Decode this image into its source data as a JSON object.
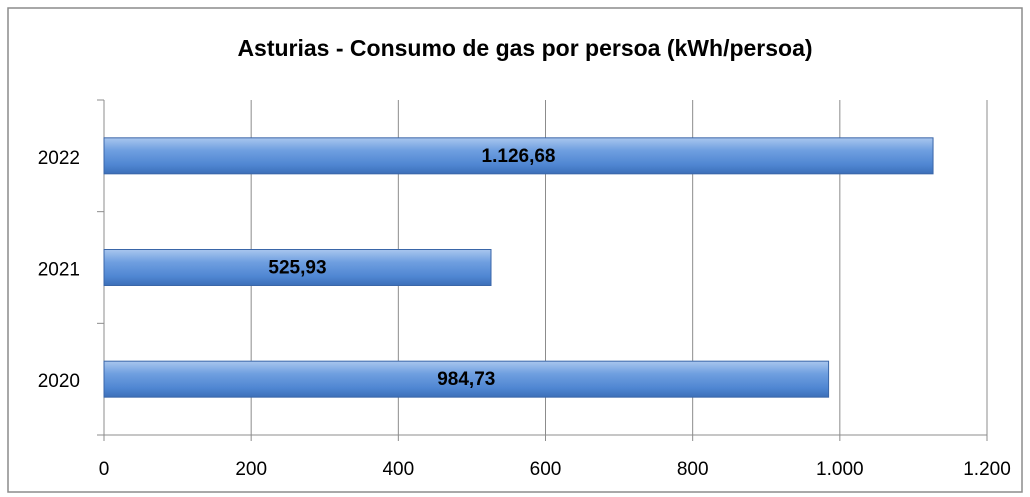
{
  "chart_data": {
    "type": "bar",
    "orientation": "horizontal",
    "title": "Asturias - Consumo de gas por persoa (kWh/persoa)",
    "categories": [
      "2022",
      "2021",
      "2020"
    ],
    "values": [
      1126.68,
      525.93,
      984.73
    ],
    "value_labels": [
      "1.126,68",
      "525,93",
      "984,73"
    ],
    "color": "#5b8fd6",
    "xlim": [
      0,
      1200
    ],
    "xticks": [
      0,
      200,
      400,
      600,
      800,
      {
        "value": 1000,
        "label": "1.000"
      },
      {
        "value": 1200,
        "label": "1.200"
      }
    ],
    "grid": true
  }
}
